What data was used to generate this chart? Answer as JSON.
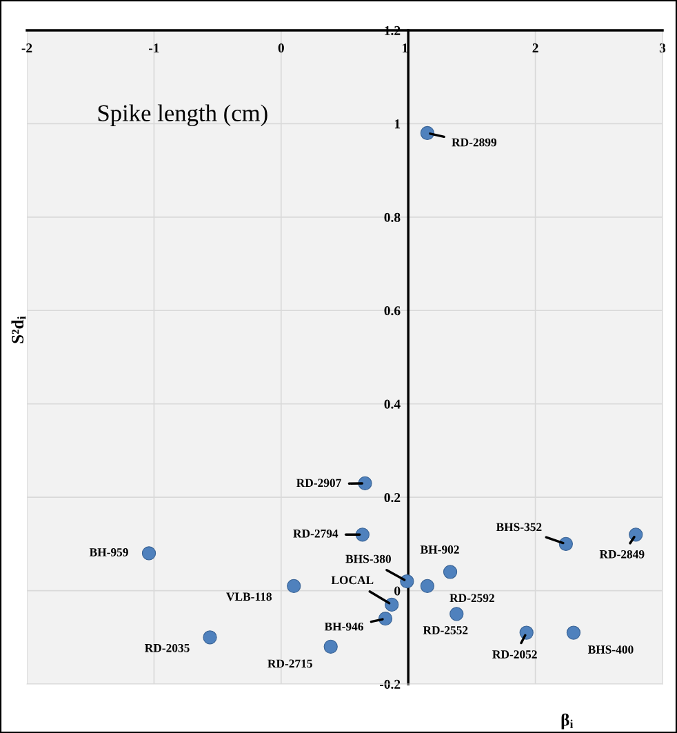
{
  "chart_data": {
    "type": "scatter",
    "title": "Spike length (cm)",
    "xlabel": "β$_{i}$",
    "ylabel": "S²d$_{i}$",
    "x": [
      1.15,
      0.66,
      0.64,
      -1.04,
      0.99,
      1.33,
      0.1,
      0.87,
      1.15,
      1.38,
      0.82,
      -0.56,
      0.39,
      1.93,
      2.3,
      2.24,
      2.79
    ],
    "series": [
      {
        "color": "#4f81bd",
        "values": [
          0.98,
          0.23,
          0.12,
          0.08,
          0.02,
          0.04,
          0.01,
          -0.03,
          0.01,
          -0.05,
          -0.06,
          -0.1,
          -0.12,
          -0.09,
          -0.09,
          0.1,
          0.12
        ]
      }
    ],
    "xlim": [
      -2,
      3
    ],
    "ylim": [
      -0.2,
      1.2
    ],
    "xticks": [
      -2,
      -1,
      0,
      1,
      2,
      3
    ],
    "yticks": [
      -0.2,
      0,
      0.2,
      0.4,
      0.6,
      0.8,
      1,
      1.2
    ],
    "grid": true,
    "marker": "circle",
    "annotations": [
      {
        "text": "RD-2899",
        "x": 1.15,
        "y": 0.98
      },
      {
        "text": "RD-2907",
        "x": 0.66,
        "y": 0.23
      },
      {
        "text": "RD-2794",
        "x": 0.64,
        "y": 0.12
      },
      {
        "text": "BH-959",
        "x": -1.04,
        "y": 0.08
      },
      {
        "text": "BHS-380",
        "x": 0.99,
        "y": 0.02
      },
      {
        "text": "BH-902",
        "x": 1.33,
        "y": 0.04
      },
      {
        "text": "VLB-118",
        "x": 0.1,
        "y": 0.01
      },
      {
        "text": "LOCAL",
        "x": 0.87,
        "y": -0.03
      },
      {
        "text": "RD-2592",
        "x": 1.15,
        "y": 0.01
      },
      {
        "text": "RD-2552",
        "x": 1.38,
        "y": -0.05
      },
      {
        "text": "BH-946",
        "x": 0.82,
        "y": -0.06
      },
      {
        "text": "RD-2035",
        "x": -0.56,
        "y": -0.1
      },
      {
        "text": "RD-2715",
        "x": 0.39,
        "y": -0.12
      },
      {
        "text": "RD-2052",
        "x": 1.93,
        "y": -0.09
      },
      {
        "text": "BHS-400",
        "x": 2.3,
        "y": -0.09
      },
      {
        "text": "BHS-352",
        "x": 2.24,
        "y": 0.1
      },
      {
        "text": "RD-2849",
        "x": 2.79,
        "y": 0.12
      }
    ]
  }
}
